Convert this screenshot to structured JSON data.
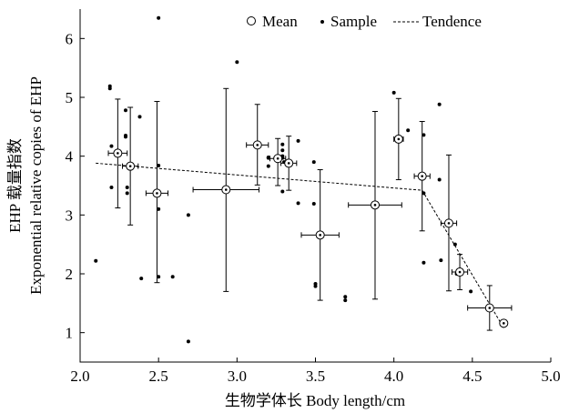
{
  "chart_data": {
    "type": "scatter",
    "title": "",
    "xlabel": "生物学体长 Body length/cm",
    "ylabel_line1": "EHP 载量指数",
    "ylabel_line2": "Exponential relative copies of EHP",
    "xlim": [
      2.0,
      5.0
    ],
    "ylim": [
      0.5,
      6.5
    ],
    "x_ticks": [
      "2.0",
      "2.5",
      "3.0",
      "3.5",
      "4.0",
      "4.5",
      "5.0"
    ],
    "y_ticks": [
      "1",
      "2",
      "3",
      "4",
      "5",
      "6"
    ],
    "x_tick_values": [
      2.0,
      2.5,
      3.0,
      3.5,
      4.0,
      4.5,
      5.0
    ],
    "y_tick_values": [
      1,
      2,
      3,
      4,
      5,
      6
    ],
    "legend": {
      "placement": "top-right",
      "mean_label": "Mean",
      "sample_label": "Sample",
      "tendence_label": "Tendence"
    },
    "means": [
      {
        "x": 2.24,
        "y": 4.05,
        "xerr": 0.06,
        "yerr_low": 0.93,
        "yerr_high": 0.92
      },
      {
        "x": 2.32,
        "y": 3.83,
        "xerr": 0.05,
        "yerr_low": 1.0,
        "yerr_high": 1.0
      },
      {
        "x": 2.49,
        "y": 3.37,
        "xerr": 0.07,
        "yerr_low": 1.52,
        "yerr_high": 1.56
      },
      {
        "x": 2.93,
        "y": 3.43,
        "xerr": 0.21,
        "yerr_low": 1.73,
        "yerr_high": 1.72
      },
      {
        "x": 3.13,
        "y": 4.19,
        "xerr": 0.07,
        "yerr_low": 0.68,
        "yerr_high": 0.69
      },
      {
        "x": 3.26,
        "y": 3.96,
        "xerr": 0.05,
        "yerr_low": 0.46,
        "yerr_high": 0.34
      },
      {
        "x": 3.33,
        "y": 3.88,
        "xerr": 0.05,
        "yerr_low": 0.46,
        "yerr_high": 0.46
      },
      {
        "x": 3.53,
        "y": 2.66,
        "xerr": 0.12,
        "yerr_low": 1.11,
        "yerr_high": 1.11
      },
      {
        "x": 3.88,
        "y": 3.17,
        "xerr": 0.17,
        "yerr_low": 1.6,
        "yerr_high": 1.59
      },
      {
        "x": 4.03,
        "y": 4.29,
        "xerr": 0.03,
        "yerr_low": 0.69,
        "yerr_high": 0.69
      },
      {
        "x": 4.18,
        "y": 3.66,
        "xerr": 0.05,
        "yerr_low": 0.93,
        "yerr_high": 0.93
      },
      {
        "x": 4.35,
        "y": 2.86,
        "xerr": 0.05,
        "yerr_low": 1.15,
        "yerr_high": 1.16
      },
      {
        "x": 4.42,
        "y": 2.03,
        "xerr": 0.05,
        "yerr_low": 0.3,
        "yerr_high": 0.3
      },
      {
        "x": 4.61,
        "y": 1.42,
        "xerr": 0.14,
        "yerr_low": 0.38,
        "yerr_high": 0.38
      },
      {
        "x": 4.7,
        "y": 1.16,
        "xerr": 0,
        "yerr_low": 0,
        "yerr_high": 0
      }
    ],
    "samples": [
      [
        2.1,
        2.22
      ],
      [
        2.19,
        5.19
      ],
      [
        2.19,
        5.15
      ],
      [
        2.2,
        4.17
      ],
      [
        2.2,
        3.47
      ],
      [
        2.29,
        4.78
      ],
      [
        2.29,
        4.35
      ],
      [
        2.29,
        4.33
      ],
      [
        2.3,
        3.47
      ],
      [
        2.3,
        3.37
      ],
      [
        2.38,
        4.67
      ],
      [
        2.39,
        1.92
      ],
      [
        2.5,
        6.35
      ],
      [
        2.5,
        3.84
      ],
      [
        2.5,
        3.1
      ],
      [
        2.5,
        1.95
      ],
      [
        2.59,
        1.95
      ],
      [
        2.69,
        3.0
      ],
      [
        2.69,
        0.85
      ],
      [
        3.0,
        5.6
      ],
      [
        3.2,
        3.98
      ],
      [
        3.2,
        3.97
      ],
      [
        3.2,
        3.83
      ],
      [
        3.29,
        4.2
      ],
      [
        3.29,
        4.1
      ],
      [
        3.29,
        4.0
      ],
      [
        3.29,
        3.97
      ],
      [
        3.3,
        3.9
      ],
      [
        3.29,
        3.4
      ],
      [
        3.39,
        4.26
      ],
      [
        3.39,
        3.2
      ],
      [
        3.49,
        3.9
      ],
      [
        3.49,
        3.19
      ],
      [
        3.5,
        1.83
      ],
      [
        3.5,
        1.79
      ],
      [
        3.69,
        1.61
      ],
      [
        3.69,
        1.55
      ],
      [
        4.0,
        5.08
      ],
      [
        4.09,
        4.44
      ],
      [
        4.19,
        4.36
      ],
      [
        4.19,
        3.37
      ],
      [
        4.19,
        2.19
      ],
      [
        4.29,
        4.88
      ],
      [
        4.29,
        3.6
      ],
      [
        4.3,
        2.23
      ],
      [
        4.39,
        2.5
      ],
      [
        4.4,
        2.0
      ],
      [
        4.49,
        1.7
      ]
    ],
    "trend": [
      [
        2.1,
        3.88
      ],
      [
        4.18,
        3.42
      ],
      [
        4.7,
        1.08
      ]
    ]
  }
}
